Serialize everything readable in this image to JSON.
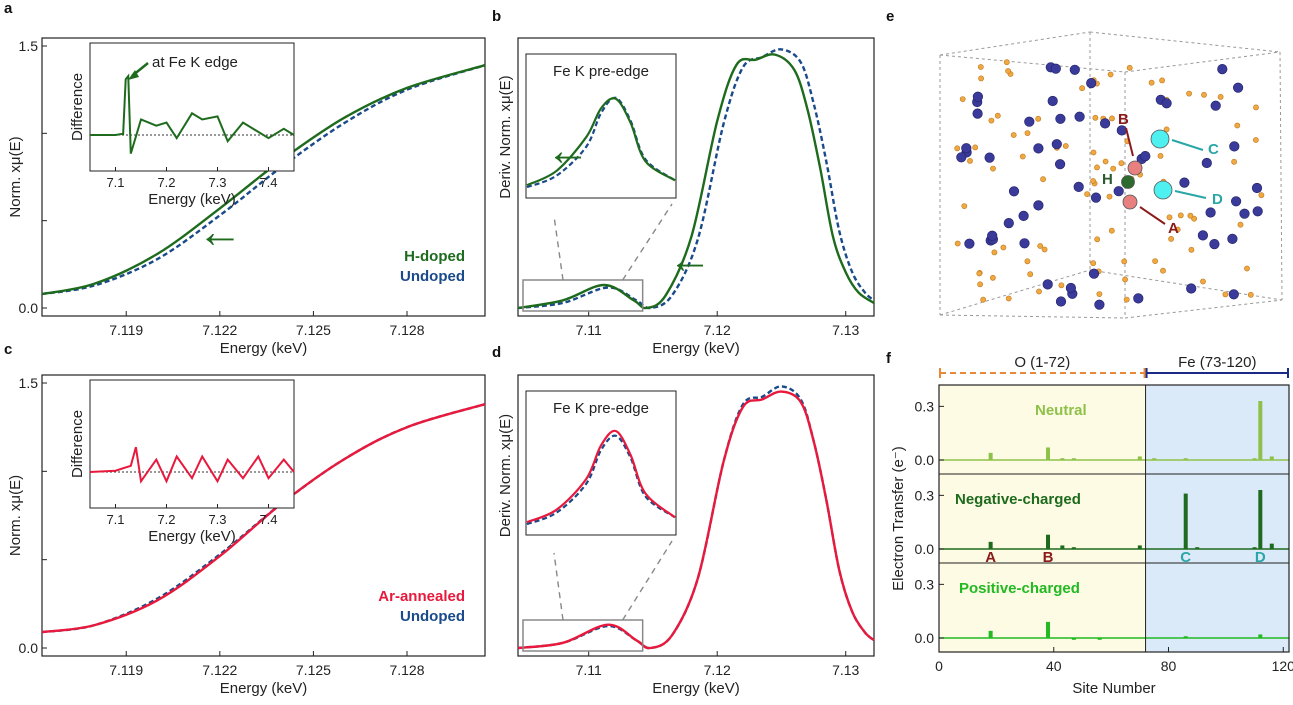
{
  "figure": {
    "letters": [
      "a",
      "b",
      "c",
      "d",
      "e",
      "f"
    ]
  },
  "chart_data": [
    {
      "id": "a",
      "type": "line",
      "xlabel": "Energy (keV)",
      "ylabel": "Norm. xμ(E)",
      "xlim": [
        7.1163,
        7.1305
      ],
      "ylim": [
        0,
        1.5
      ],
      "xticks": [
        "7.119",
        "7.122",
        "7.125",
        "7.128"
      ],
      "xtick_values": [
        7.119,
        7.122,
        7.125,
        7.128
      ],
      "yticks": [
        "0.0",
        "1.5"
      ],
      "ytick_values": [
        0.0,
        1.5
      ],
      "series": [
        {
          "name": "H-doped",
          "color": "#1e6b1e",
          "style": "solid",
          "x": [
            7.1163,
            7.118,
            7.12,
            7.122,
            7.124,
            7.126,
            7.128,
            7.1305
          ],
          "y": [
            0.08,
            0.14,
            0.31,
            0.57,
            0.85,
            1.09,
            1.26,
            1.39
          ]
        },
        {
          "name": "Undoped",
          "color": "#1a4a8a",
          "style": "dashed",
          "x": [
            7.1163,
            7.118,
            7.12,
            7.122,
            7.124,
            7.126,
            7.128,
            7.1305
          ],
          "y": [
            0.08,
            0.13,
            0.28,
            0.53,
            0.81,
            1.06,
            1.25,
            1.39
          ]
        }
      ],
      "legend": {
        "placement": "bottom-right"
      },
      "annotations": [
        "←"
      ],
      "inset": {
        "xlabel": "Energy (keV)",
        "ylabel": "Difference",
        "xticks": [
          "7.1",
          "7.2",
          "7.3",
          "7.4"
        ],
        "xtick_values": [
          7.1,
          7.2,
          7.3,
          7.4
        ],
        "xlim": [
          7.05,
          7.45
        ],
        "annotation": "at Fe K edge",
        "series": {
          "color": "#1e6b1e",
          "x": [
            7.05,
            7.1,
            7.115,
            7.12,
            7.125,
            7.13,
            7.15,
            7.18,
            7.2,
            7.22,
            7.25,
            7.27,
            7.3,
            7.32,
            7.35,
            7.38,
            7.4,
            7.43,
            7.45
          ],
          "y": [
            0.0,
            0.0,
            0.02,
            0.9,
            0.95,
            -0.3,
            0.25,
            0.15,
            0.2,
            -0.05,
            0.35,
            0.25,
            0.3,
            -0.1,
            0.2,
            0.05,
            -0.05,
            0.1,
            0.0
          ]
        }
      }
    },
    {
      "id": "b",
      "type": "line",
      "xlabel": "Energy (keV)",
      "ylabel": "Deriv. Norm. xμ(E)",
      "xlim": [
        7.1045,
        7.1322
      ],
      "xticks": [
        "7.11",
        "7.12",
        "7.13"
      ],
      "xtick_values": [
        7.11,
        7.12,
        7.13
      ],
      "series": [
        {
          "name": "H-doped",
          "color": "#1e6b1e",
          "style": "solid",
          "x": [
            7.1045,
            7.108,
            7.1112,
            7.1135,
            7.1145,
            7.116,
            7.118,
            7.12,
            7.1215,
            7.123,
            7.1245,
            7.126,
            7.127,
            7.128,
            7.129,
            7.13,
            7.131,
            7.1322
          ],
          "y": [
            0.0,
            0.03,
            0.09,
            0.03,
            0.0,
            0.05,
            0.28,
            0.73,
            0.95,
            0.97,
            0.99,
            0.93,
            0.78,
            0.55,
            0.28,
            0.14,
            0.06,
            0.02
          ]
        },
        {
          "name": "Undoped",
          "color": "#1a4a8a",
          "style": "dashed",
          "x": [
            7.1045,
            7.108,
            7.1115,
            7.1137,
            7.1148,
            7.1165,
            7.1185,
            7.1205,
            7.122,
            7.1235,
            7.125,
            7.1265,
            7.1275,
            7.1285,
            7.1295,
            7.1305,
            7.1315,
            7.1322
          ],
          "y": [
            0.0,
            0.02,
            0.08,
            0.03,
            0.0,
            0.05,
            0.27,
            0.72,
            0.94,
            0.98,
            1.01,
            0.96,
            0.8,
            0.57,
            0.3,
            0.14,
            0.06,
            0.03
          ]
        }
      ],
      "annotations": [
        "←"
      ],
      "inset": {
        "title": "Fe K pre-edge",
        "annotation": "←",
        "series": [
          {
            "color": "#1e6b1e",
            "x": [
              0,
              0.2,
              0.4,
              0.5,
              0.6,
              0.7,
              0.8,
              1.0
            ],
            "y": [
              0.05,
              0.2,
              0.55,
              0.85,
              0.95,
              0.7,
              0.3,
              0.1
            ]
          },
          {
            "color": "#1a4a8a",
            "x": [
              0,
              0.2,
              0.4,
              0.5,
              0.6,
              0.7,
              0.8,
              1.0
            ],
            "y": [
              0.03,
              0.15,
              0.45,
              0.8,
              0.96,
              0.72,
              0.32,
              0.1
            ]
          }
        ]
      }
    },
    {
      "id": "c",
      "type": "line",
      "xlabel": "Energy (keV)",
      "ylabel": "Norm. xμ(E)",
      "xlim": [
        7.1163,
        7.1305
      ],
      "ylim": [
        0,
        1.5
      ],
      "xticks": [
        "7.119",
        "7.122",
        "7.125",
        "7.128"
      ],
      "xtick_values": [
        7.119,
        7.122,
        7.125,
        7.128
      ],
      "yticks": [
        "0.0",
        "1.5"
      ],
      "ytick_values": [
        0.0,
        1.5
      ],
      "series": [
        {
          "name": "Ar-annealed",
          "color": "#e8193c",
          "style": "solid",
          "x": [
            7.1163,
            7.118,
            7.12,
            7.122,
            7.124,
            7.126,
            7.128,
            7.1305
          ],
          "y": [
            0.09,
            0.13,
            0.27,
            0.52,
            0.82,
            1.07,
            1.25,
            1.38
          ]
        },
        {
          "name": "Undoped",
          "color": "#1a4a8a",
          "style": "dashed",
          "x": [
            7.1163,
            7.118,
            7.12,
            7.122,
            7.124,
            7.126,
            7.128,
            7.1305
          ],
          "y": [
            0.09,
            0.13,
            0.28,
            0.53,
            0.82,
            1.07,
            1.25,
            1.38
          ]
        }
      ],
      "legend": {
        "placement": "bottom-right"
      },
      "inset": {
        "xlabel": "Energy (keV)",
        "ylabel": "Difference",
        "xticks": [
          "7.1",
          "7.2",
          "7.3",
          "7.4"
        ],
        "xtick_values": [
          7.1,
          7.2,
          7.3,
          7.4
        ],
        "xlim": [
          7.05,
          7.45
        ],
        "series": {
          "color": "#e8193c",
          "x": [
            7.05,
            7.1,
            7.13,
            7.14,
            7.15,
            7.18,
            7.2,
            7.22,
            7.25,
            7.27,
            7.3,
            7.32,
            7.35,
            7.38,
            7.4,
            7.43,
            7.45
          ],
          "y": [
            0.0,
            0.02,
            0.1,
            0.4,
            -0.15,
            0.2,
            -0.15,
            0.25,
            -0.1,
            0.25,
            -0.15,
            0.2,
            -0.1,
            0.25,
            -0.1,
            0.2,
            0.0
          ]
        }
      }
    },
    {
      "id": "d",
      "type": "line",
      "xlabel": "Energy (keV)",
      "ylabel": "Deriv. Norm. xμ(E)",
      "xlim": [
        7.1045,
        7.1322
      ],
      "xticks": [
        "7.11",
        "7.12",
        "7.13"
      ],
      "xtick_values": [
        7.11,
        7.12,
        7.13
      ],
      "series": [
        {
          "name": "Ar-annealed",
          "color": "#e8193c",
          "style": "solid",
          "x": [
            7.1045,
            7.108,
            7.1115,
            7.1137,
            7.1148,
            7.1165,
            7.1185,
            7.1205,
            7.122,
            7.1235,
            7.125,
            7.1265,
            7.1275,
            7.1285,
            7.1295,
            7.1305,
            7.1315,
            7.1322
          ],
          "y": [
            0.0,
            0.02,
            0.09,
            0.03,
            0.0,
            0.05,
            0.27,
            0.72,
            0.93,
            0.96,
            0.99,
            0.95,
            0.8,
            0.57,
            0.3,
            0.14,
            0.06,
            0.03
          ]
        },
        {
          "name": "Undoped",
          "color": "#1a4a8a",
          "style": "dashed",
          "x": [
            7.1045,
            7.108,
            7.1115,
            7.1137,
            7.1148,
            7.1165,
            7.1185,
            7.1205,
            7.122,
            7.1235,
            7.125,
            7.1265,
            7.1275,
            7.1285,
            7.1295,
            7.1305,
            7.1315,
            7.1322
          ],
          "y": [
            0.0,
            0.02,
            0.085,
            0.03,
            0.0,
            0.05,
            0.27,
            0.72,
            0.94,
            0.97,
            1.01,
            0.96,
            0.8,
            0.57,
            0.3,
            0.14,
            0.06,
            0.03
          ]
        }
      ],
      "inset": {
        "title": "Fe K pre-edge",
        "series": [
          {
            "color": "#e8193c",
            "x": [
              0,
              0.2,
              0.4,
              0.5,
              0.6,
              0.7,
              0.8,
              1.0
            ],
            "y": [
              0.05,
              0.18,
              0.5,
              0.85,
              1.0,
              0.75,
              0.35,
              0.1
            ]
          },
          {
            "color": "#1a4a8a",
            "x": [
              0,
              0.2,
              0.4,
              0.5,
              0.6,
              0.7,
              0.8,
              1.0
            ],
            "y": [
              0.03,
              0.15,
              0.45,
              0.8,
              0.95,
              0.72,
              0.32,
              0.1
            ]
          }
        ]
      }
    },
    {
      "id": "f",
      "type": "bar",
      "xlabel": "Site Number",
      "ylabel": "Electron Transfer (e⁻)",
      "xlim": [
        0,
        122
      ],
      "xticks": [
        "0",
        "40",
        "80",
        "120"
      ],
      "xtick_values": [
        0,
        40,
        80,
        120
      ],
      "yticks": [
        "0.0",
        "0.3"
      ],
      "regions": [
        {
          "label": "O (1-72)",
          "from": 0,
          "to": 72,
          "color": "#fdfbe4",
          "label_color": "#e8893a"
        },
        {
          "label": "Fe (73-120)",
          "from": 72,
          "to": 122,
          "color": "#dbeaf8",
          "label_color": "#1a2a8a"
        }
      ],
      "site_labels": [
        {
          "text": "A",
          "x": 18,
          "color": "#8b1a1a"
        },
        {
          "text": "B",
          "x": 38,
          "color": "#8b1a1a"
        },
        {
          "text": "C",
          "x": 86,
          "color": "#2aa6a6"
        },
        {
          "text": "D",
          "x": 112,
          "color": "#2aa6a6"
        }
      ],
      "rows": [
        {
          "name": "Neutral",
          "name_color": "#8fc14a",
          "bar_color": "#8fc14a",
          "bars": [
            [
              18,
              0.04
            ],
            [
              38,
              0.07
            ],
            [
              43,
              0.01
            ],
            [
              47,
              0.01
            ],
            [
              70,
              0.02
            ],
            [
              75,
              0.01
            ],
            [
              86,
              0.01
            ],
            [
              110,
              0.01
            ],
            [
              112,
              0.33
            ],
            [
              116,
              0.02
            ]
          ]
        },
        {
          "name": "Negative-charged",
          "name_color": "#1e6b1e",
          "bar_color": "#1e6b1e",
          "bars": [
            [
              18,
              0.04
            ],
            [
              38,
              0.08
            ],
            [
              43,
              0.02
            ],
            [
              47,
              0.01
            ],
            [
              70,
              0.02
            ],
            [
              86,
              0.31
            ],
            [
              90,
              0.01
            ],
            [
              110,
              0.01
            ],
            [
              112,
              0.33
            ],
            [
              116,
              0.03
            ]
          ]
        },
        {
          "name": "Positive-charged",
          "name_color": "#22b922",
          "bar_color": "#22b922",
          "bars": [
            [
              18,
              0.04
            ],
            [
              38,
              0.09
            ],
            [
              47,
              -0.01
            ],
            [
              56,
              -0.01
            ],
            [
              86,
              0.01
            ],
            [
              112,
              0.02
            ]
          ]
        }
      ]
    }
  ],
  "panel_e": {
    "labels": [
      {
        "text": "B",
        "color": "#8b1a1a"
      },
      {
        "text": "H",
        "color": "#2e5a2e"
      },
      {
        "text": "A",
        "color": "#8b1a1a"
      },
      {
        "text": "C",
        "color": "#2aa6a6"
      },
      {
        "text": "D",
        "color": "#2aa6a6"
      }
    ]
  }
}
